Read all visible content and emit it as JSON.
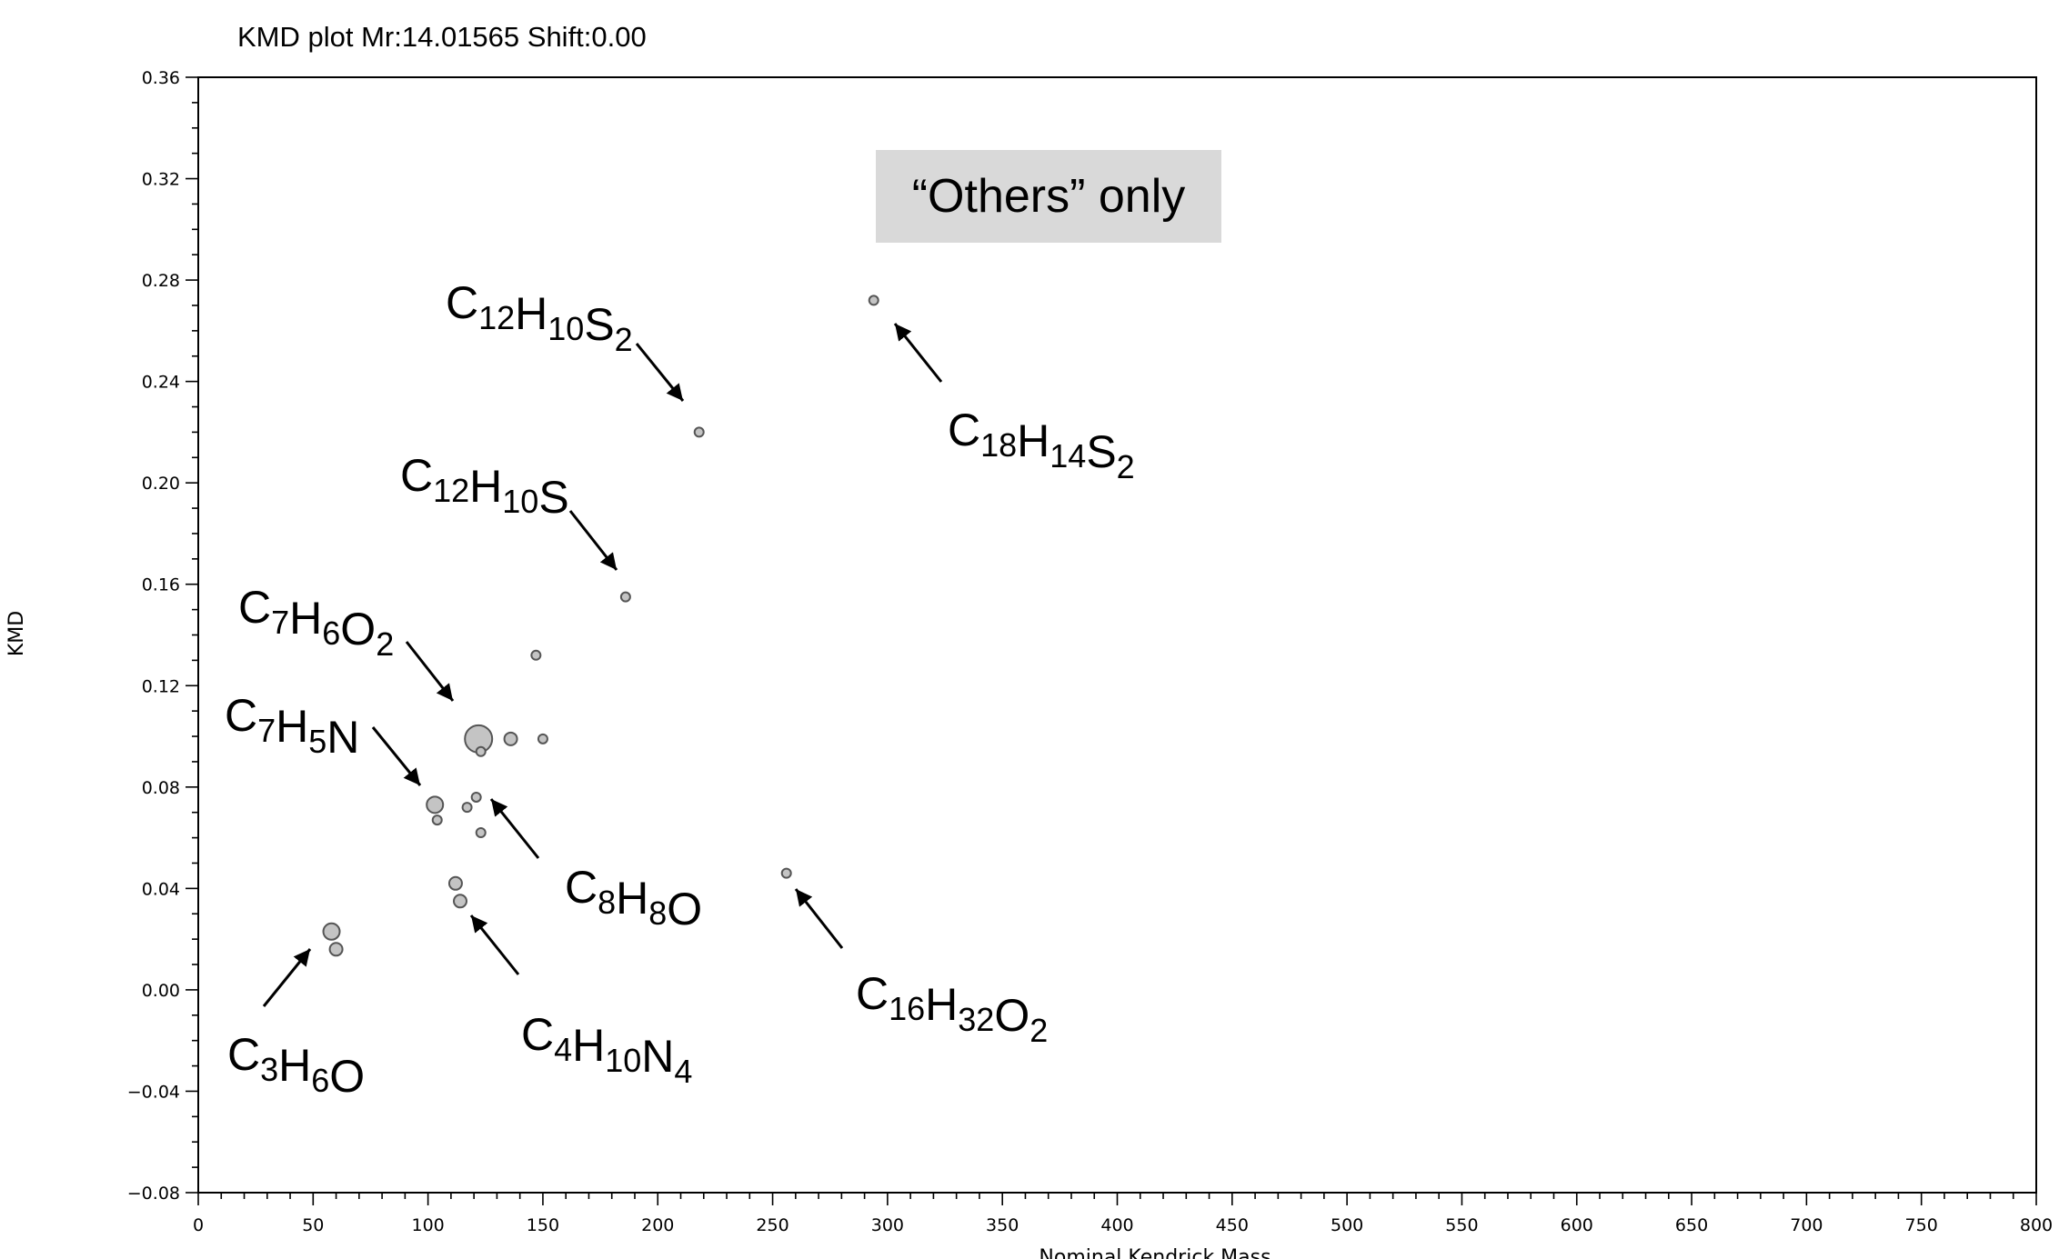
{
  "chart_data": {
    "type": "scatter",
    "title": "KMD plot  Mr:14.01565  Shift:0.00",
    "xlabel": "Nominal Kendrick Mass",
    "ylabel": "KMD",
    "xlim": [
      0,
      800
    ],
    "ylim": [
      -0.08,
      0.36
    ],
    "x_ticks": [
      "0",
      "50",
      "100",
      "150",
      "200",
      "250",
      "300",
      "350",
      "400",
      "450",
      "500",
      "550",
      "600",
      "650",
      "700",
      "750",
      "800"
    ],
    "y_ticks": [
      "-0.08",
      "-0.04",
      "0.00",
      "0.04",
      "0.08",
      "0.12",
      "0.16",
      "0.20",
      "0.24",
      "0.28",
      "0.32",
      "0.36"
    ],
    "grid": false,
    "point_color": "#c4c4c4",
    "points": [
      {
        "x": 58,
        "y": 0.023,
        "size": 3
      },
      {
        "x": 60,
        "y": 0.016,
        "size": 2
      },
      {
        "x": 103,
        "y": 0.073,
        "size": 3
      },
      {
        "x": 104,
        "y": 0.067,
        "size": 1
      },
      {
        "x": 112,
        "y": 0.042,
        "size": 2
      },
      {
        "x": 114,
        "y": 0.035,
        "size": 2
      },
      {
        "x": 117,
        "y": 0.072,
        "size": 1
      },
      {
        "x": 121,
        "y": 0.076,
        "size": 1
      },
      {
        "x": 122,
        "y": 0.099,
        "size": 5
      },
      {
        "x": 123,
        "y": 0.094,
        "size": 1
      },
      {
        "x": 123,
        "y": 0.062,
        "size": 1
      },
      {
        "x": 136,
        "y": 0.099,
        "size": 2
      },
      {
        "x": 147,
        "y": 0.132,
        "size": 1
      },
      {
        "x": 150,
        "y": 0.099,
        "size": 1
      },
      {
        "x": 186,
        "y": 0.155,
        "size": 1
      },
      {
        "x": 218,
        "y": 0.22,
        "size": 1
      },
      {
        "x": 256,
        "y": 0.046,
        "size": 1
      },
      {
        "x": 294,
        "y": 0.272,
        "size": 1
      }
    ],
    "annotations": [
      {
        "parts": [
          [
            "C",
            ""
          ],
          [
            "3",
            "sub"
          ],
          [
            "H",
            ""
          ],
          [
            "6",
            "sub"
          ],
          [
            "O",
            ""
          ]
        ]
      },
      {
        "parts": [
          [
            "C",
            ""
          ],
          [
            "4",
            "sub"
          ],
          [
            "H",
            ""
          ],
          [
            "10",
            "sub"
          ],
          [
            "N",
            ""
          ],
          [
            "4",
            "sub"
          ]
        ]
      },
      {
        "parts": [
          [
            "C",
            ""
          ],
          [
            "7",
            "sub"
          ],
          [
            "H",
            ""
          ],
          [
            "5",
            "sub"
          ],
          [
            "N",
            ""
          ]
        ]
      },
      {
        "parts": [
          [
            "C",
            ""
          ],
          [
            "7",
            "sub"
          ],
          [
            "H",
            ""
          ],
          [
            "6",
            "sub"
          ],
          [
            "O",
            ""
          ],
          [
            "2",
            "sub"
          ]
        ]
      },
      {
        "parts": [
          [
            "C",
            ""
          ],
          [
            "8",
            "sub"
          ],
          [
            "H",
            ""
          ],
          [
            "8",
            "sub"
          ],
          [
            "O",
            ""
          ]
        ]
      },
      {
        "parts": [
          [
            "C",
            ""
          ],
          [
            "12",
            "sub"
          ],
          [
            "H",
            ""
          ],
          [
            "10",
            "sub"
          ],
          [
            "S",
            ""
          ]
        ]
      },
      {
        "parts": [
          [
            "C",
            ""
          ],
          [
            "12",
            "sub"
          ],
          [
            "H",
            ""
          ],
          [
            "10",
            "sub"
          ],
          [
            "S",
            ""
          ],
          [
            "2",
            "sub"
          ]
        ]
      },
      {
        "parts": [
          [
            "C",
            ""
          ],
          [
            "16",
            "sub"
          ],
          [
            "H",
            ""
          ],
          [
            "32",
            "sub"
          ],
          [
            "O",
            ""
          ],
          [
            "2",
            "sub"
          ]
        ]
      },
      {
        "parts": [
          [
            "C",
            ""
          ],
          [
            "18",
            "sub"
          ],
          [
            "H",
            ""
          ],
          [
            "14",
            "sub"
          ],
          [
            "S",
            ""
          ],
          [
            "2",
            "sub"
          ]
        ]
      }
    ],
    "note": "“Others” only",
    "note_bg": "#d9d9d9"
  }
}
